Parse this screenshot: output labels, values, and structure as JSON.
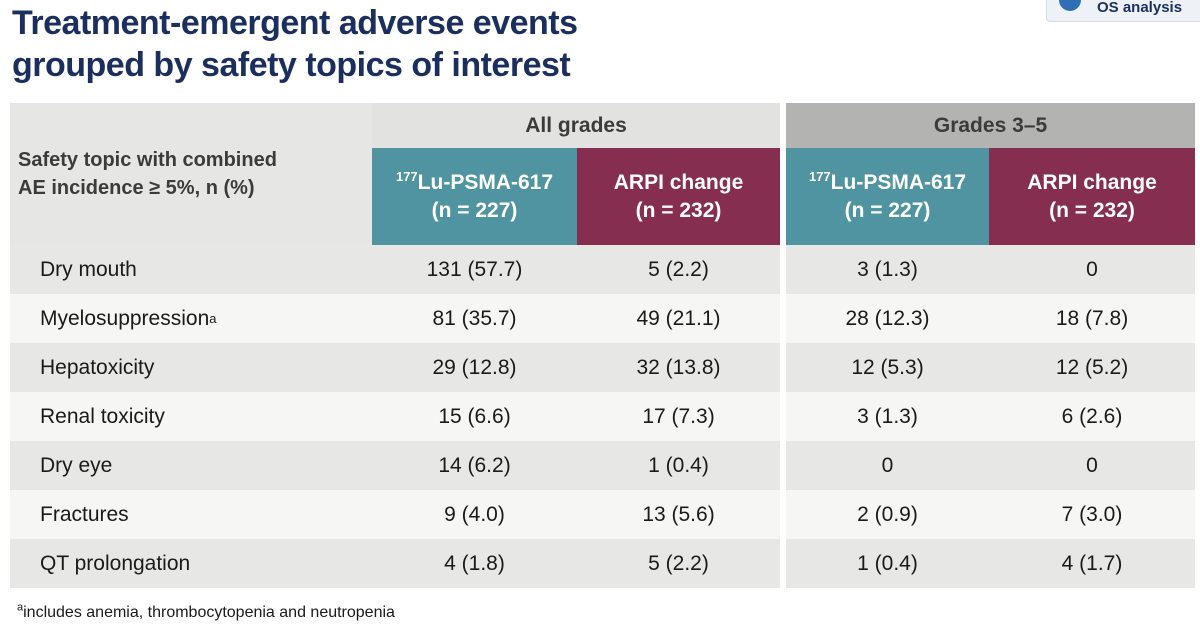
{
  "title": {
    "line1": "Treatment-emergent adverse events",
    "line2": "grouped by safety topics of interest"
  },
  "corner_badge": {
    "label": "OS analysis"
  },
  "table": {
    "topic_header": {
      "line1": "Safety topic with combined",
      "line2": "AE incidence ≥ 5%, n (%)"
    },
    "groups": [
      "All grades",
      "Grades 3–5"
    ],
    "arms": [
      {
        "sup": "177",
        "name": "Lu-PSMA-617",
        "n": "(n = 227)",
        "color": "#4f94a0"
      },
      {
        "sup": "",
        "name": "ARPI change",
        "n": "(n = 232)",
        "color": "#862e4f"
      },
      {
        "sup": "177",
        "name": "Lu-PSMA-617",
        "n": "(n = 227)",
        "color": "#4f94a0"
      },
      {
        "sup": "",
        "name": "ARPI change",
        "n": "(n = 232)",
        "color": "#862e4f"
      }
    ],
    "rows": [
      {
        "label": "Dry mouth",
        "sup": "",
        "values": [
          "131 (57.7)",
          "5 (2.2)",
          "3 (1.3)",
          "0"
        ]
      },
      {
        "label": "Myelosuppression",
        "sup": "a",
        "values": [
          "81 (35.7)",
          "49 (21.1)",
          "28 (12.3)",
          "18 (7.8)"
        ]
      },
      {
        "label": "Hepatoxicity",
        "sup": "",
        "values": [
          "29 (12.8)",
          "32 (13.8)",
          "12 (5.3)",
          "12 (5.2)"
        ]
      },
      {
        "label": "Renal toxicity",
        "sup": "",
        "values": [
          "15 (6.6)",
          "17 (7.3)",
          "3 (1.3)",
          "6 (2.6)"
        ]
      },
      {
        "label": "Dry eye",
        "sup": "",
        "values": [
          "14 (6.2)",
          "1 (0.4)",
          "0",
          "0"
        ]
      },
      {
        "label": "Fractures",
        "sup": "",
        "values": [
          "9 (4.0)",
          "13 (5.6)",
          "2 (0.9)",
          "7 (3.0)"
        ]
      },
      {
        "label": "QT prolongation",
        "sup": "",
        "values": [
          "4 (1.8)",
          "5 (2.2)",
          "1 (0.4)",
          "4 (1.7)"
        ]
      }
    ]
  },
  "footnote": {
    "sup": "a",
    "text": "includes anemia, thrombocytopenia and neutropenia"
  }
}
